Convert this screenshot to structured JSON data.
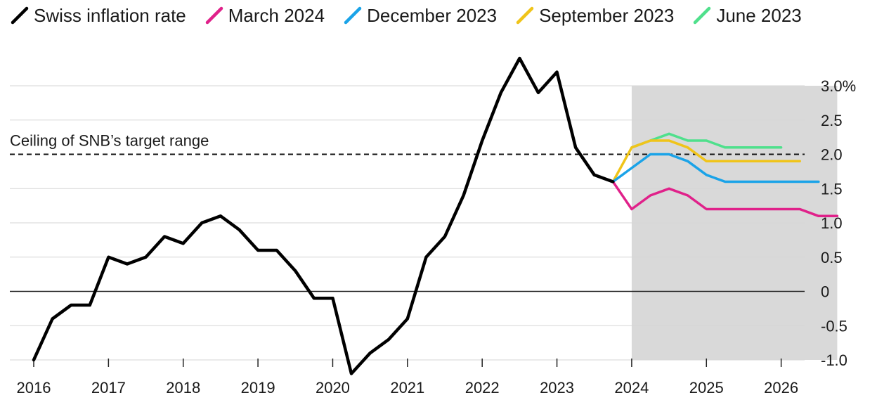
{
  "chart_data": {
    "type": "line",
    "title": "",
    "xlabel": "",
    "ylabel": "",
    "xlim": [
      2016,
      2027
    ],
    "ylim": [
      -1.0,
      3.0
    ],
    "grid": true,
    "legend_position": "top-left",
    "y_ticks": [
      {
        "value": 3.0,
        "label": "3.0%"
      },
      {
        "value": 2.5,
        "label": "2.5"
      },
      {
        "value": 2.0,
        "label": "2.0"
      },
      {
        "value": 1.5,
        "label": "1.5"
      },
      {
        "value": 1.0,
        "label": "1.0"
      },
      {
        "value": 0.5,
        "label": "0.5"
      },
      {
        "value": 0.0,
        "label": "0"
      },
      {
        "value": -0.5,
        "label": "-0.5"
      },
      {
        "value": -1.0,
        "label": "-1.0"
      }
    ],
    "x_ticks": [
      {
        "value": 2016,
        "label": "2016"
      },
      {
        "value": 2017,
        "label": "2017"
      },
      {
        "value": 2018,
        "label": "2018"
      },
      {
        "value": 2019,
        "label": "2019"
      },
      {
        "value": 2020,
        "label": "2020"
      },
      {
        "value": 2021,
        "label": "2021"
      },
      {
        "value": 2022,
        "label": "2022"
      },
      {
        "value": 2023,
        "label": "2023"
      },
      {
        "value": 2024,
        "label": "2024"
      },
      {
        "value": 2025,
        "label": "2025"
      },
      {
        "value": 2026,
        "label": "2026"
      }
    ],
    "forecast_band": {
      "x_start": 2024,
      "x_end": 2026.75,
      "color": "#d9d9d9"
    },
    "reference_line": {
      "value": 2.0,
      "label": "Ceiling of SNB’s target range",
      "style": "dashed"
    },
    "series": [
      {
        "name": "Swiss inflation rate",
        "color": "#000000",
        "points": [
          [
            2016.0,
            -1.0
          ],
          [
            2016.25,
            -0.4
          ],
          [
            2016.5,
            -0.2
          ],
          [
            2016.75,
            -0.2
          ],
          [
            2017.0,
            0.5
          ],
          [
            2017.25,
            0.4
          ],
          [
            2017.5,
            0.5
          ],
          [
            2017.75,
            0.8
          ],
          [
            2018.0,
            0.7
          ],
          [
            2018.25,
            1.0
          ],
          [
            2018.5,
            1.1
          ],
          [
            2018.75,
            0.9
          ],
          [
            2019.0,
            0.6
          ],
          [
            2019.25,
            0.6
          ],
          [
            2019.5,
            0.3
          ],
          [
            2019.75,
            -0.1
          ],
          [
            2020.0,
            -0.1
          ],
          [
            2020.25,
            -1.2
          ],
          [
            2020.5,
            -0.9
          ],
          [
            2020.75,
            -0.7
          ],
          [
            2021.0,
            -0.4
          ],
          [
            2021.25,
            0.5
          ],
          [
            2021.5,
            0.8
          ],
          [
            2021.75,
            1.4
          ],
          [
            2022.0,
            2.2
          ],
          [
            2022.25,
            2.9
          ],
          [
            2022.5,
            3.4
          ],
          [
            2022.75,
            2.9
          ],
          [
            2023.0,
            3.2
          ],
          [
            2023.25,
            2.1
          ],
          [
            2023.5,
            1.7
          ],
          [
            2023.75,
            1.6
          ]
        ]
      },
      {
        "name": "March 2024",
        "color": "#e0218a",
        "points": [
          [
            2023.75,
            1.6
          ],
          [
            2024.0,
            1.2
          ],
          [
            2024.25,
            1.4
          ],
          [
            2024.5,
            1.5
          ],
          [
            2024.75,
            1.4
          ],
          [
            2025.0,
            1.2
          ],
          [
            2025.25,
            1.2
          ],
          [
            2025.5,
            1.2
          ],
          [
            2025.75,
            1.2
          ],
          [
            2026.0,
            1.2
          ],
          [
            2026.25,
            1.2
          ],
          [
            2026.5,
            1.1
          ],
          [
            2026.75,
            1.1
          ]
        ]
      },
      {
        "name": "December 2023",
        "color": "#1aa3e8",
        "points": [
          [
            2023.75,
            1.6
          ],
          [
            2024.0,
            1.8
          ],
          [
            2024.25,
            2.0
          ],
          [
            2024.5,
            2.0
          ],
          [
            2024.75,
            1.9
          ],
          [
            2025.0,
            1.7
          ],
          [
            2025.25,
            1.6
          ],
          [
            2025.5,
            1.6
          ],
          [
            2025.75,
            1.6
          ],
          [
            2026.0,
            1.6
          ],
          [
            2026.25,
            1.6
          ],
          [
            2026.5,
            1.6
          ]
        ]
      },
      {
        "name": "September 2023",
        "color": "#f0c419",
        "points": [
          [
            2023.75,
            1.6
          ],
          [
            2024.0,
            2.1
          ],
          [
            2024.25,
            2.2
          ],
          [
            2024.5,
            2.2
          ],
          [
            2024.75,
            2.1
          ],
          [
            2025.0,
            1.9
          ],
          [
            2025.25,
            1.9
          ],
          [
            2025.5,
            1.9
          ],
          [
            2025.75,
            1.9
          ],
          [
            2026.0,
            1.9
          ],
          [
            2026.25,
            1.9
          ]
        ]
      },
      {
        "name": "June 2023",
        "color": "#4fe08c",
        "points": [
          [
            2024.0,
            2.1
          ],
          [
            2024.25,
            2.2
          ],
          [
            2024.5,
            2.3
          ],
          [
            2024.75,
            2.2
          ],
          [
            2025.0,
            2.2
          ],
          [
            2025.25,
            2.1
          ],
          [
            2025.5,
            2.1
          ],
          [
            2025.75,
            2.1
          ],
          [
            2026.0,
            2.1
          ]
        ]
      }
    ]
  }
}
